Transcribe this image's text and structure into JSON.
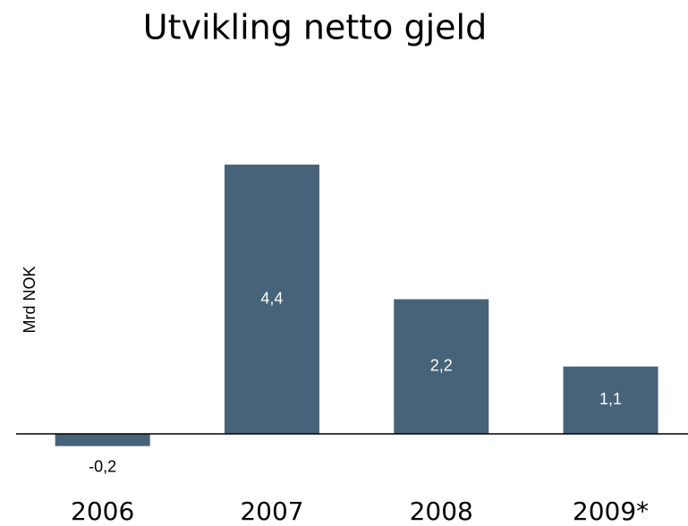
{
  "chart_data": {
    "type": "bar",
    "title": "Utvikling netto gjeld",
    "y_label": "Mrd NOK",
    "categories": [
      "2006",
      "2007",
      "2008",
      "2009*"
    ],
    "values": [
      -0.2,
      4.4,
      2.2,
      1.1
    ],
    "value_labels": [
      "-0,2",
      "4,4",
      "2,2",
      "1,1"
    ],
    "color": "#466379",
    "ylim": [
      -0.8,
      5.2
    ]
  }
}
